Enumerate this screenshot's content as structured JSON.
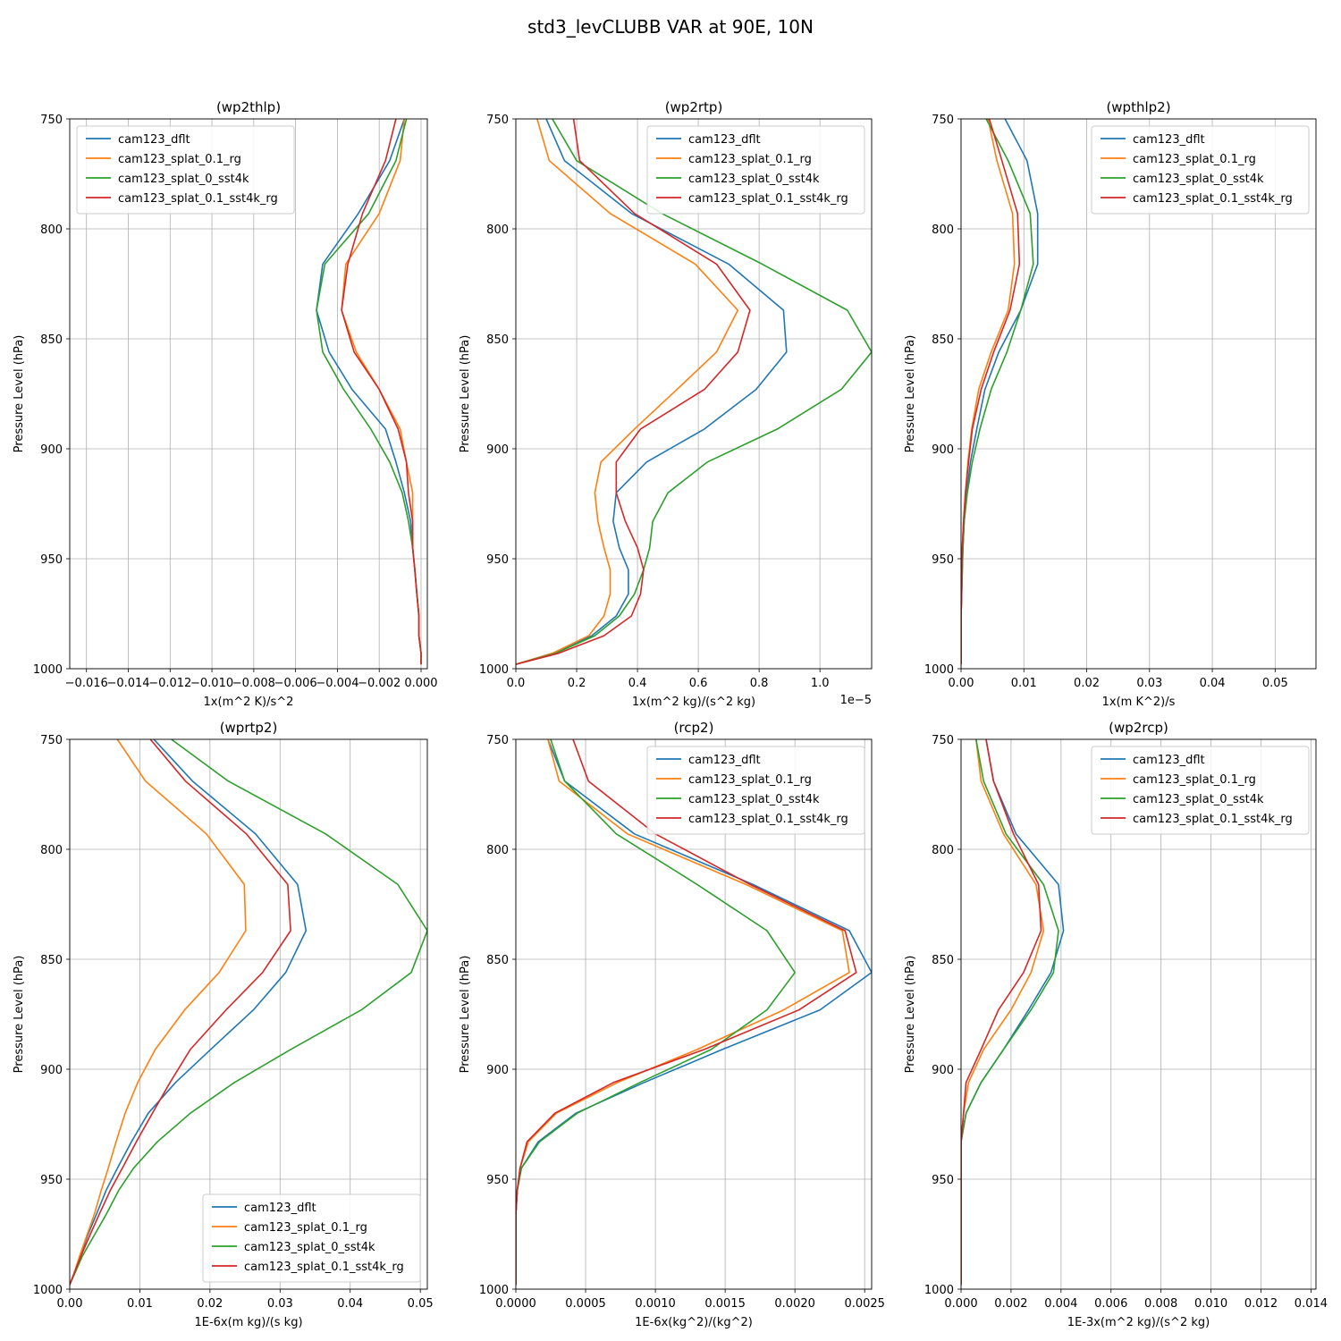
{
  "figure": {
    "title": "std3_levCLUBB VAR at 90E, 10N"
  },
  "colors": {
    "cam123_dflt": "#1f77b4",
    "cam123_splat_0.1_rg": "#ff7f0e",
    "cam123_splat_0_sst4k": "#2ca02c",
    "cam123_splat_0.1_sst4k_rg": "#d62728"
  },
  "series_names": [
    "cam123_dflt",
    "cam123_splat_0.1_rg",
    "cam123_splat_0_sst4k",
    "cam123_splat_0.1_sst4k_rg"
  ],
  "chart_data": [
    {
      "type": "line",
      "title": "(wp2thlp)",
      "xlabel": "1x(m^2 K)/s^2",
      "ylabel": "Pressure Level (hPa)",
      "xlim": [
        -0.0168,
        0.0003
      ],
      "ylim": [
        1000,
        750
      ],
      "legend": "upper-left",
      "grid": true,
      "xticks": [
        -0.016,
        -0.014,
        -0.012,
        -0.01,
        -0.008,
        -0.006,
        -0.004,
        -0.002,
        0.0
      ],
      "xtick_labels": [
        "−0.016",
        "−0.014",
        "−0.012",
        "−0.010",
        "−0.008",
        "−0.006",
        "−0.004",
        "−0.002",
        "0.000"
      ],
      "yticks": [
        750,
        800,
        850,
        900,
        950,
        1000
      ],
      "ytick_labels": [
        "750",
        "800",
        "850",
        "900",
        "950",
        "1000"
      ],
      "levels": [
        750,
        769,
        793,
        816,
        837,
        856,
        873,
        891,
        906,
        920,
        933,
        945,
        955,
        966,
        976,
        985,
        993,
        998
      ],
      "series": [
        {
          "name": "cam123_dflt",
          "values": [
            -0.0008,
            -0.0015,
            -0.003,
            -0.0047,
            -0.005,
            -0.0044,
            -0.0033,
            -0.0017,
            -0.0012,
            -0.0008,
            -0.0005,
            -0.0004,
            -0.0003,
            -0.0002,
            -0.0001,
            -0.0001,
            0.0,
            0.0
          ]
        },
        {
          "name": "cam123_splat_0.1_rg",
          "values": [
            -0.0008,
            -0.001,
            -0.002,
            -0.0036,
            -0.0038,
            -0.0031,
            -0.002,
            -0.001,
            -0.0007,
            -0.0004,
            -0.0004,
            -0.0004,
            -0.0003,
            -0.0002,
            -0.0001,
            -0.0001,
            0.0,
            0.0
          ]
        },
        {
          "name": "cam123_splat_0_sst4k",
          "values": [
            -0.0007,
            -0.0012,
            -0.0025,
            -0.0046,
            -0.005,
            -0.0047,
            -0.0037,
            -0.0024,
            -0.0015,
            -0.0009,
            -0.0006,
            -0.0004,
            -0.0003,
            -0.0002,
            -0.0001,
            -0.0001,
            0.0,
            0.0
          ]
        },
        {
          "name": "cam123_splat_0.1_sst4k_rg",
          "values": [
            -0.0012,
            -0.0017,
            -0.0028,
            -0.0035,
            -0.0038,
            -0.0032,
            -0.002,
            -0.0011,
            -0.0007,
            -0.0006,
            -0.0004,
            -0.0004,
            -0.0003,
            -0.0002,
            -0.0001,
            -0.0001,
            0.0,
            0.0
          ]
        }
      ]
    },
    {
      "type": "line",
      "title": "(wp2rtp)",
      "xlabel": "1x(m^2 kg)/(s^2 kg)",
      "ylabel": "Pressure Level (hPa)",
      "x_scale_label": "1e−5",
      "xlim": [
        0.0,
        1.17e-05
      ],
      "ylim": [
        1000,
        750
      ],
      "legend": "upper-right",
      "grid": true,
      "xticks": [
        0.0,
        2e-06,
        4e-06,
        6e-06,
        8e-06,
        1e-05
      ],
      "xtick_labels": [
        "0.0",
        "0.2",
        "0.4",
        "0.6",
        "0.8",
        "1.0"
      ],
      "yticks": [
        750,
        800,
        850,
        900,
        950,
        1000
      ],
      "ytick_labels": [
        "750",
        "800",
        "850",
        "900",
        "950",
        "1000"
      ],
      "levels": [
        750,
        769,
        793,
        816,
        837,
        856,
        873,
        891,
        906,
        920,
        933,
        945,
        955,
        966,
        976,
        985,
        993,
        998
      ],
      "series": [
        {
          "name": "cam123_dflt",
          "values": [
            1e-06,
            1.6e-06,
            3.8e-06,
            7e-06,
            8.8e-06,
            8.9e-06,
            7.9e-06,
            6.2e-06,
            4.3e-06,
            3.3e-06,
            3.2e-06,
            3.4e-06,
            3.7e-06,
            3.7e-06,
            3.3e-06,
            2.5e-06,
            1.2e-06,
            0.0
          ]
        },
        {
          "name": "cam123_splat_0.1_rg",
          "values": [
            7e-07,
            1.1e-06,
            3.1e-06,
            5.9e-06,
            7.3e-06,
            6.6e-06,
            5.3e-06,
            3.9e-06,
            2.8e-06,
            2.6e-06,
            2.7e-06,
            2.9e-06,
            3.1e-06,
            3.1e-06,
            2.9e-06,
            2.4e-06,
            1.2e-06,
            0.0
          ]
        },
        {
          "name": "cam123_splat_0_sst4k",
          "values": [
            1.2e-06,
            2e-06,
            4.8e-06,
            8.1e-06,
            1.09e-05,
            1.17e-05,
            1.07e-05,
            8.6e-06,
            6.3e-06,
            5e-06,
            4.5e-06,
            4.4e-06,
            4.2e-06,
            3.9e-06,
            3.4e-06,
            2.6e-06,
            1.3e-06,
            0.0
          ]
        },
        {
          "name": "cam123_splat_0.1_sst4k_rg",
          "values": [
            1.9e-06,
            2.1e-06,
            3.9e-06,
            6.6e-06,
            7.7e-06,
            7.3e-06,
            6.2e-06,
            4.1e-06,
            3.3e-06,
            3.3e-06,
            3.6e-06,
            4e-06,
            4.2e-06,
            4.1e-06,
            3.8e-06,
            2.9e-06,
            1.4e-06,
            0.0
          ]
        }
      ]
    },
    {
      "type": "line",
      "title": "(wpthlp2)",
      "xlabel": "1x(m K^2)/s",
      "ylabel": "Pressure Level (hPa)",
      "xlim": [
        0.0,
        0.0565
      ],
      "ylim": [
        1000,
        750
      ],
      "legend": "upper-right",
      "grid": true,
      "xticks": [
        0.0,
        0.01,
        0.02,
        0.03,
        0.04,
        0.05
      ],
      "xtick_labels": [
        "0.00",
        "0.01",
        "0.02",
        "0.03",
        "0.04",
        "0.05"
      ],
      "yticks": [
        750,
        800,
        850,
        900,
        950,
        1000
      ],
      "ytick_labels": [
        "750",
        "800",
        "850",
        "900",
        "950",
        "1000"
      ],
      "levels": [
        750,
        769,
        793,
        816,
        837,
        856,
        873,
        891,
        906,
        920,
        933,
        945,
        955,
        966,
        976,
        985,
        993,
        998
      ],
      "series": [
        {
          "name": "cam123_dflt",
          "values": [
            0.007,
            0.0105,
            0.0122,
            0.0122,
            0.0095,
            0.006,
            0.0038,
            0.0025,
            0.0015,
            0.0009,
            0.0005,
            0.0003,
            0.0002,
            0.0001,
            0.0,
            0.0,
            0.0,
            0.0
          ]
        },
        {
          "name": "cam123_splat_0.1_rg",
          "values": [
            0.0043,
            0.0057,
            0.0082,
            0.0085,
            0.0075,
            0.0048,
            0.0028,
            0.0017,
            0.0011,
            0.0007,
            0.0004,
            0.0002,
            0.0001,
            0.0001,
            0.0,
            0.0,
            0.0,
            0.0
          ]
        },
        {
          "name": "cam123_splat_0_sst4k",
          "values": [
            0.004,
            0.0075,
            0.011,
            0.0115,
            0.0095,
            0.0073,
            0.0048,
            0.003,
            0.0018,
            0.001,
            0.0005,
            0.0003,
            0.0002,
            0.0001,
            0.0,
            0.0,
            0.0,
            0.0
          ]
        },
        {
          "name": "cam123_splat_0.1_sst4k_rg",
          "values": [
            0.0045,
            0.0065,
            0.009,
            0.0093,
            0.0078,
            0.0052,
            0.0032,
            0.0018,
            0.0012,
            0.0007,
            0.0004,
            0.0002,
            0.0001,
            0.0001,
            0.0,
            0.0,
            0.0,
            0.0
          ]
        }
      ]
    },
    {
      "type": "line",
      "title": "(wprtp2)",
      "xlabel": "1E-6x(m kg)/(s kg)",
      "ylabel": "Pressure Level (hPa)",
      "xlim": [
        0.0,
        0.051
      ],
      "ylim": [
        1000,
        750
      ],
      "legend": "lower-right",
      "grid": true,
      "xticks": [
        0.0,
        0.01,
        0.02,
        0.03,
        0.04,
        0.05
      ],
      "xtick_labels": [
        "0.00",
        "0.01",
        "0.02",
        "0.03",
        "0.04",
        "0.05"
      ],
      "yticks": [
        750,
        800,
        850,
        900,
        950,
        1000
      ],
      "ytick_labels": [
        "750",
        "800",
        "850",
        "900",
        "950",
        "1000"
      ],
      "levels": [
        750,
        769,
        793,
        816,
        837,
        856,
        873,
        891,
        906,
        920,
        933,
        945,
        955,
        966,
        976,
        985,
        993,
        998
      ],
      "series": [
        {
          "name": "cam123_dflt",
          "values": [
            0.012,
            0.0175,
            0.0265,
            0.0325,
            0.0337,
            0.0308,
            0.0262,
            0.0201,
            0.0151,
            0.0112,
            0.0088,
            0.0068,
            0.0052,
            0.0038,
            0.0025,
            0.0015,
            0.0006,
            0.0
          ]
        },
        {
          "name": "cam123_splat_0.1_rg",
          "values": [
            0.0068,
            0.0108,
            0.0195,
            0.0249,
            0.0251,
            0.0213,
            0.0164,
            0.0122,
            0.0097,
            0.0079,
            0.0066,
            0.0055,
            0.0045,
            0.0035,
            0.0024,
            0.0014,
            0.0006,
            0.0
          ]
        },
        {
          "name": "cam123_splat_0_sst4k",
          "values": [
            0.0145,
            0.0226,
            0.0365,
            0.0468,
            0.051,
            0.0487,
            0.0416,
            0.0315,
            0.0235,
            0.0172,
            0.0125,
            0.0091,
            0.007,
            0.0052,
            0.0034,
            0.0018,
            0.0007,
            0.0
          ]
        },
        {
          "name": "cam123_splat_0.1_sst4k_rg",
          "values": [
            0.0115,
            0.0165,
            0.0252,
            0.0311,
            0.0315,
            0.0275,
            0.0223,
            0.0172,
            0.0143,
            0.0118,
            0.0095,
            0.0075,
            0.0058,
            0.0042,
            0.0028,
            0.0016,
            0.0006,
            0.0
          ]
        }
      ]
    },
    {
      "type": "line",
      "title": "(rcp2)",
      "xlabel": "1E-6x(kg^2)/(kg^2)",
      "ylabel": "Pressure Level (hPa)",
      "xlim": [
        0.0,
        0.00255
      ],
      "ylim": [
        1000,
        750
      ],
      "legend": "upper-right",
      "grid": true,
      "xticks": [
        0.0,
        0.0005,
        0.001,
        0.0015,
        0.002,
        0.0025
      ],
      "xtick_labels": [
        "0.0000",
        "0.0005",
        "0.0010",
        "0.0015",
        "0.0020",
        "0.0025"
      ],
      "yticks": [
        750,
        800,
        850,
        900,
        950,
        1000
      ],
      "ytick_labels": [
        "750",
        "800",
        "850",
        "900",
        "950",
        "1000"
      ],
      "levels": [
        750,
        769,
        793,
        816,
        837,
        856,
        873,
        891,
        906,
        920,
        933,
        945,
        955,
        966,
        976,
        985,
        993,
        998
      ],
      "series": [
        {
          "name": "cam123_dflt",
          "values": [
            0.00023,
            0.00035,
            0.00085,
            0.0017,
            0.00239,
            0.00255,
            0.00218,
            0.00148,
            0.00092,
            0.00043,
            0.00016,
            4e-05,
            1e-05,
            0.0,
            0.0,
            0.0,
            0.0,
            0.0
          ]
        },
        {
          "name": "cam123_splat_0.1_rg",
          "values": [
            0.00023,
            0.00031,
            0.0008,
            0.00165,
            0.00234,
            0.00239,
            0.00192,
            0.0013,
            0.00073,
            0.00029,
            9e-05,
            3e-05,
            1e-05,
            0.0,
            0.0,
            0.0,
            0.0,
            0.0
          ]
        },
        {
          "name": "cam123_splat_0_sst4k",
          "values": [
            0.00025,
            0.00035,
            0.00072,
            0.0013,
            0.0018,
            0.002,
            0.0018,
            0.0014,
            0.00089,
            0.00044,
            0.00017,
            4e-05,
            1e-05,
            0.0,
            0.0,
            0.0,
            0.0,
            0.0
          ]
        },
        {
          "name": "cam123_splat_0.1_sst4k_rg",
          "values": [
            0.00041,
            0.00052,
            0.001,
            0.00168,
            0.00236,
            0.00244,
            0.00203,
            0.00135,
            0.0007,
            0.00028,
            8e-05,
            3e-05,
            1e-05,
            0.0,
            0.0,
            0.0,
            0.0,
            0.0
          ]
        }
      ]
    },
    {
      "type": "line",
      "title": "(wp2rcp)",
      "xlabel": "1E-3x(m^2 kg)/(s^2 kg)",
      "ylabel": "Pressure Level (hPa)",
      "xlim": [
        0.0,
        0.0142
      ],
      "ylim": [
        1000,
        750
      ],
      "legend": "upper-right",
      "grid": true,
      "xticks": [
        0.0,
        0.002,
        0.004,
        0.006,
        0.008,
        0.01,
        0.012,
        0.014
      ],
      "xtick_labels": [
        "0.000",
        "0.002",
        "0.004",
        "0.006",
        "0.008",
        "0.010",
        "0.012",
        "0.014"
      ],
      "yticks": [
        750,
        800,
        850,
        900,
        950,
        1000
      ],
      "ytick_labels": [
        "750",
        "800",
        "850",
        "900",
        "950",
        "1000"
      ],
      "levels": [
        750,
        769,
        793,
        816,
        837,
        856,
        873,
        891,
        906,
        920,
        933,
        945,
        955,
        966,
        976,
        985,
        993,
        998
      ],
      "series": [
        {
          "name": "cam123_dflt",
          "values": [
            0.001,
            0.0013,
            0.0022,
            0.0039,
            0.0041,
            0.0036,
            0.0027,
            0.0017,
            0.0008,
            0.0002,
            0.0,
            0.0,
            0.0,
            0.0,
            0.0,
            0.0,
            0.0,
            0.0
          ]
        },
        {
          "name": "cam123_splat_0.1_rg",
          "values": [
            0.0006,
            0.0008,
            0.0017,
            0.003,
            0.0033,
            0.0028,
            0.002,
            0.0009,
            0.0003,
            0.0001,
            0.0,
            0.0,
            0.0,
            0.0,
            0.0,
            0.0,
            0.0,
            0.0
          ]
        },
        {
          "name": "cam123_splat_0_sst4k",
          "values": [
            0.0006,
            0.0009,
            0.0018,
            0.0033,
            0.0039,
            0.0037,
            0.0028,
            0.0017,
            0.0008,
            0.0002,
            0.0,
            0.0,
            0.0,
            0.0,
            0.0,
            0.0,
            0.0,
            0.0
          ]
        },
        {
          "name": "cam123_splat_0.1_sst4k_rg",
          "values": [
            0.001,
            0.0013,
            0.0021,
            0.0031,
            0.0032,
            0.0025,
            0.0015,
            0.0008,
            0.0002,
            0.0001,
            0.0,
            0.0,
            0.0,
            0.0,
            0.0,
            0.0,
            0.0,
            0.0
          ]
        }
      ]
    }
  ]
}
